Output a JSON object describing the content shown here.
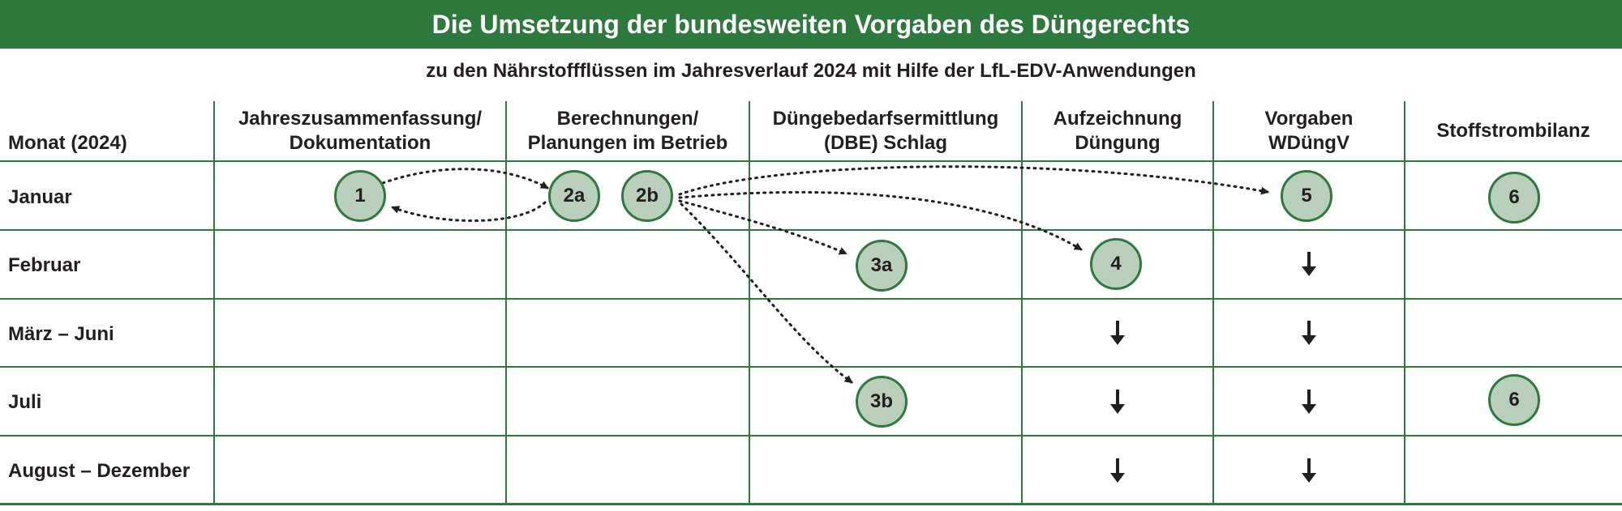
{
  "title": "Die Umsetzung der bundesweiten Vorgaben des Düngerechts",
  "subtitle": "zu den Nährstoffflüssen im Jahresverlauf 2024 mit Hilfe der LfL-EDV-Anwendungen",
  "columns": {
    "month": "Monat (2024)",
    "col1": [
      "Jahreszusammenfassung/",
      "Dokumentation"
    ],
    "col2": [
      "Berechnungen/",
      "Planungen im Betrieb"
    ],
    "col3": [
      "Düngebedarfsermittlung",
      "(DBE) Schlag"
    ],
    "col4": [
      "Aufzeichnung",
      "Düngung"
    ],
    "col5": [
      "Vorgaben",
      "WDüngV"
    ],
    "col6": "Stoffstrombilanz"
  },
  "rows": [
    "Januar",
    "Februar",
    "März – Juni",
    "Juli",
    "August – Dezember"
  ],
  "nodes": {
    "n1": "1",
    "n2a": "2a",
    "n2b": "2b",
    "n3a": "3a",
    "n3b": "3b",
    "n4": "4",
    "n5": "5",
    "n6_jan": "6",
    "n6_jul": "6"
  },
  "colors": {
    "brand_green": "#2e7a3d",
    "circle_fill": "#b9cfbb",
    "text": "#231f20"
  }
}
